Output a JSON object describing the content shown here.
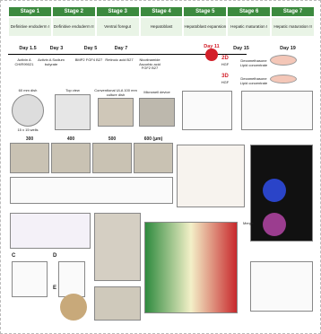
{
  "stages": [
    {
      "stage": "Stage 1",
      "name": "Definitive endoderm I"
    },
    {
      "stage": "Stage 2",
      "name": "Definitive endoderm II"
    },
    {
      "stage": "Stage 3",
      "name": "Ventral foregut"
    },
    {
      "stage": "Stage 4",
      "name": "Hepatoblast"
    },
    {
      "stage": "Stage 5",
      "name": "Hepatoblast expansion"
    },
    {
      "stage": "Stage 6",
      "name": "Hepatic maturation I"
    },
    {
      "stage": "Stage 7",
      "name": "Hepatic maturation II"
    }
  ],
  "timeline": {
    "days": [
      "Day 1.5",
      "Day 3",
      "Day 5",
      "Day 7",
      "Day 11",
      "Day 15",
      "Day 19"
    ],
    "factors": [
      "Activin A CHIR99021",
      "Activin A Sodium butyrate",
      "BMP2 FGF4 B27",
      "Retinoic acid B27",
      "Nicotinamide Ascorbic acid FGF2 B27"
    ],
    "branches": [
      {
        "mode": "2D",
        "factor": "HGF",
        "next": "Dexamethasone Lipid concentrate"
      },
      {
        "mode": "3D",
        "factor": "HGF",
        "next": "Dexamethasone Lipid concentrate"
      }
    ]
  },
  "culture": {
    "dish": "60 mm dish",
    "top_view": "Top view",
    "wells": "15 x 15 wells",
    "conventional": "Conventional ULA 100 mm culture dish",
    "microwell": "Microwell device"
  },
  "sizes": [
    "300",
    "400",
    "500",
    "600 (μm)"
  ],
  "fluorescence": {
    "merge": "Merge"
  },
  "letters": [
    "C",
    "D",
    "E"
  ]
}
